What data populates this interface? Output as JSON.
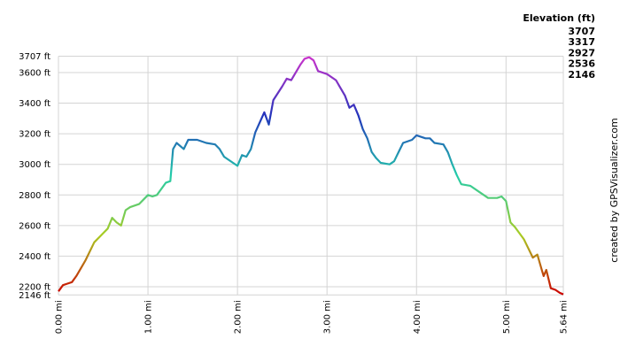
{
  "chart_data": {
    "type": "line",
    "credit": "created by GPSVisualizer.com",
    "legend": {
      "title": "Elevation (ft)",
      "items": [
        {
          "value": 3707,
          "color": "#cc33cc"
        },
        {
          "value": 3317,
          "color": "#2233bb"
        },
        {
          "value": 2927,
          "color": "#22ccaa"
        },
        {
          "value": 2536,
          "color": "#aacc22"
        },
        {
          "value": 2146,
          "color": "#cc0000"
        }
      ]
    },
    "xlim": [
      0,
      5.64
    ],
    "ylim": [
      2146,
      3707
    ],
    "xticks": [
      {
        "value": 0,
        "label": "0.00 mi"
      },
      {
        "value": 1,
        "label": "1.00 mi"
      },
      {
        "value": 2,
        "label": "2.00 mi"
      },
      {
        "value": 3,
        "label": "3.00 mi"
      },
      {
        "value": 4,
        "label": "4.00 mi"
      },
      {
        "value": 5,
        "label": "5.00 mi"
      },
      {
        "value": 5.64,
        "label": "5.64 mi"
      }
    ],
    "yticks": [
      {
        "value": 2146,
        "label": "2146 ft"
      },
      {
        "value": 2200,
        "label": "2200 ft"
      },
      {
        "value": 2400,
        "label": "2400 ft"
      },
      {
        "value": 2600,
        "label": "2600 ft"
      },
      {
        "value": 2800,
        "label": "2800 ft"
      },
      {
        "value": 3000,
        "label": "3000 ft"
      },
      {
        "value": 3200,
        "label": "3200 ft"
      },
      {
        "value": 3400,
        "label": "3400 ft"
      },
      {
        "value": 3600,
        "label": "3600 ft"
      },
      {
        "value": 3707,
        "label": "3707 ft"
      }
    ],
    "grid": true,
    "x": [
      0,
      0.05,
      0.1,
      0.15,
      0.2,
      0.3,
      0.4,
      0.5,
      0.55,
      0.6,
      0.65,
      0.7,
      0.75,
      0.8,
      0.9,
      1.0,
      1.05,
      1.1,
      1.2,
      1.25,
      1.28,
      1.32,
      1.4,
      1.45,
      1.55,
      1.65,
      1.75,
      1.8,
      1.85,
      1.95,
      2.0,
      2.05,
      2.1,
      2.15,
      2.2,
      2.3,
      2.35,
      2.4,
      2.5,
      2.55,
      2.6,
      2.7,
      2.75,
      2.8,
      2.85,
      2.9,
      3.0,
      3.1,
      3.2,
      3.25,
      3.3,
      3.35,
      3.4,
      3.45,
      3.5,
      3.55,
      3.6,
      3.7,
      3.75,
      3.8,
      3.85,
      3.95,
      4.0,
      4.1,
      4.15,
      4.2,
      4.3,
      4.35,
      4.4,
      4.45,
      4.5,
      4.6,
      4.7,
      4.8,
      4.9,
      4.95,
      5.0,
      5.05,
      5.1,
      5.2,
      5.25,
      5.3,
      5.35,
      5.4,
      5.42,
      5.45,
      5.5,
      5.55,
      5.6,
      5.64
    ],
    "series": [
      {
        "values": [
          2170,
          2210,
          2220,
          2230,
          2270,
          2370,
          2490,
          2550,
          2580,
          2650,
          2620,
          2600,
          2700,
          2720,
          2740,
          2800,
          2790,
          2800,
          2880,
          2890,
          3100,
          3140,
          3100,
          3160,
          3160,
          3140,
          3130,
          3100,
          3050,
          3010,
          2990,
          3060,
          3050,
          3100,
          3210,
          3340,
          3260,
          3420,
          3510,
          3560,
          3550,
          3650,
          3690,
          3700,
          3680,
          3610,
          3590,
          3550,
          3450,
          3370,
          3390,
          3320,
          3230,
          3170,
          3080,
          3040,
          3010,
          3000,
          3020,
          3080,
          3140,
          3160,
          3190,
          3170,
          3170,
          3140,
          3130,
          3080,
          3000,
          2930,
          2870,
          2860,
          2820,
          2780,
          2780,
          2790,
          2760,
          2620,
          2590,
          2510,
          2450,
          2390,
          2410,
          2310,
          2270,
          2310,
          2190,
          2180,
          2160,
          2150
        ]
      }
    ]
  }
}
